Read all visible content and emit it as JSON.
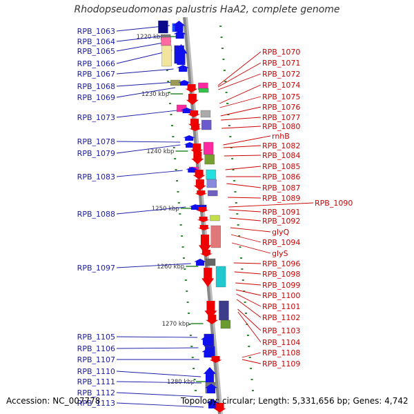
{
  "title": "Rhodopseudomonas palustris HaA2, complete genome",
  "accession": "Accession: NC_007778",
  "topology": "Topology: circular; Length: 5,331,656 bp; Genes: 4,742",
  "colors": {
    "left_label": "#1a1aa8",
    "right_label": "#cc0000",
    "tick": "#2a8a2a",
    "backbone": "#888888"
  },
  "scale_labels": [
    "1220 kbp",
    "1230 kbp",
    "1240 kbp",
    "1250 kbp",
    "1260 kbp",
    "1270 kbp",
    "1280 kbp"
  ],
  "left_genes": [
    "RPB_1063",
    "RPB_1064",
    "RPB_1065",
    "RPB_1066",
    "RPB_1067",
    "RPB_1068",
    "RPB_1069",
    "RPB_1073",
    "RPB_1078",
    "RPB_1079",
    "RPB_1083",
    "RPB_1088",
    "RPB_1097",
    "RPB_1105",
    "RPB_1106",
    "RPB_1107",
    "RPB_1110",
    "RPB_1111",
    "RPB_1112",
    "RPB_1113"
  ],
  "right_genes": [
    "RPB_1070",
    "RPB_1071",
    "RPB_1072",
    "RPB_1074",
    "RPB_1075",
    "RPB_1076",
    "RPB_1077",
    "RPB_1080",
    "rnhB",
    "RPB_1082",
    "RPB_1084",
    "RPB_1085",
    "RPB_1086",
    "RPB_1087",
    "RPB_1089",
    "RPB_1090",
    "RPB_1091",
    "RPB_1092",
    "glyQ",
    "RPB_1094",
    "glyS",
    "RPB_1096",
    "RPB_1098",
    "RPB_1099",
    "RPB_1100",
    "RPB_1101",
    "RPB_1102",
    "RPB_1103",
    "RPB_1104",
    "RPB_1108",
    "RPB_1109"
  ]
}
